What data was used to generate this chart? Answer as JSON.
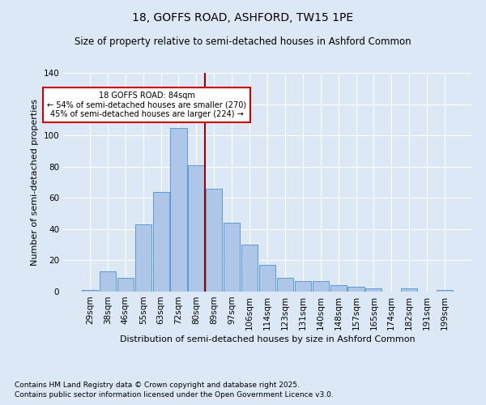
{
  "title": "18, GOFFS ROAD, ASHFORD, TW15 1PE",
  "subtitle": "Size of property relative to semi-detached houses in Ashford Common",
  "xlabel": "Distribution of semi-detached houses by size in Ashford Common",
  "ylabel": "Number of semi-detached properties",
  "footnote1": "Contains HM Land Registry data © Crown copyright and database right 2025.",
  "footnote2": "Contains public sector information licensed under the Open Government Licence v3.0.",
  "bar_labels": [
    "29sqm",
    "38sqm",
    "46sqm",
    "55sqm",
    "63sqm",
    "72sqm",
    "80sqm",
    "89sqm",
    "97sqm",
    "106sqm",
    "114sqm",
    "123sqm",
    "131sqm",
    "140sqm",
    "148sqm",
    "157sqm",
    "165sqm",
    "174sqm",
    "182sqm",
    "191sqm",
    "199sqm"
  ],
  "bar_values": [
    1,
    13,
    9,
    43,
    64,
    105,
    81,
    66,
    44,
    30,
    17,
    9,
    7,
    7,
    4,
    3,
    2,
    0,
    2,
    0,
    1
  ],
  "bar_color": "#aec6e8",
  "bar_edge_color": "#5b9bd5",
  "vline_x": 6.5,
  "vline_color": "#990000",
  "annotation_title": "18 GOFFS ROAD: 84sqm",
  "annotation_line1": "← 54% of semi-detached houses are smaller (270)",
  "annotation_line2": "45% of semi-detached houses are larger (224) →",
  "annotation_box_color": "#ffffff",
  "annotation_box_edge": "#cc0000",
  "ylim": [
    0,
    140
  ],
  "yticks": [
    0,
    20,
    40,
    60,
    80,
    100,
    120,
    140
  ],
  "background_color": "#dce8f5",
  "plot_background_color": "#dce8f5",
  "title_fontsize": 10,
  "subtitle_fontsize": 8.5,
  "axis_label_fontsize": 8,
  "tick_fontsize": 7.5,
  "footnote_fontsize": 6.5
}
